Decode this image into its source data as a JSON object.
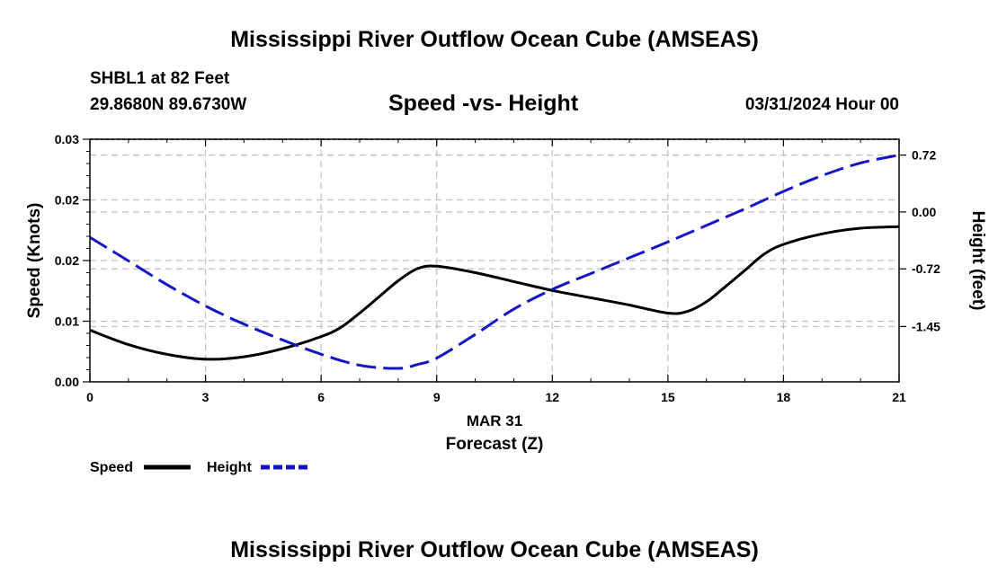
{
  "header": {
    "title": "Mississippi River Outflow Ocean Cube (AMSEAS)",
    "station": "SHBL1 at 82 Feet",
    "coords": "29.8680N  89.6730W",
    "chart_title": "Speed -vs- Height",
    "datetime": "03/31/2024 Hour 00"
  },
  "footer": {
    "title": "Mississippi River Outflow Ocean Cube (AMSEAS)"
  },
  "chart_data": {
    "type": "line",
    "title": "Speed -vs- Height",
    "xlabel": "Forecast (Z)",
    "xlabel_date": "MAR 31",
    "ylabel": "Speed (Knots)",
    "y2label": "Height (feet)",
    "xlim": [
      0,
      21
    ],
    "ylim": [
      0,
      0.03
    ],
    "y2lim": [
      -2.15,
      0.92
    ],
    "x_ticks": [
      0,
      3,
      6,
      9,
      12,
      15,
      18,
      21
    ],
    "x_tick_labels": [
      "0",
      "3",
      "6",
      "9",
      "12",
      "15",
      "18",
      "21"
    ],
    "y_ticks": [
      0,
      0.0075,
      0.015,
      0.0225,
      0.03
    ],
    "y_tick_labels": [
      "0.00",
      "0.01",
      "0.02",
      "0.02",
      "0.03"
    ],
    "y2_ticks": [
      -1.45,
      -0.72,
      0.0,
      0.72
    ],
    "y2_tick_labels": [
      "-1.45",
      "-0.72",
      "0.00",
      "0.72"
    ],
    "grid": true,
    "legend_position": "bottom-left",
    "colors": {
      "speed": "#000000",
      "height": "#1515c8",
      "grid": "#bfbfbf"
    },
    "series": [
      {
        "name": "Speed",
        "axis": "left",
        "style": "solid",
        "x": [
          0,
          1,
          2,
          3,
          4,
          5,
          6,
          6.5,
          7,
          7.5,
          8,
          8.5,
          9,
          10,
          11,
          12,
          13,
          14,
          15,
          15.5,
          16,
          16.5,
          17,
          17.5,
          18,
          19,
          20,
          21
        ],
        "y": [
          0.0064,
          0.0046,
          0.0034,
          0.0028,
          0.0031,
          0.0041,
          0.0056,
          0.0067,
          0.0085,
          0.0105,
          0.0125,
          0.014,
          0.0143,
          0.0135,
          0.0124,
          0.0113,
          0.0104,
          0.0095,
          0.0085,
          0.0087,
          0.0099,
          0.0118,
          0.0138,
          0.0158,
          0.017,
          0.0183,
          0.019,
          0.0192
        ]
      },
      {
        "name": "Height",
        "axis": "right",
        "style": "dashed",
        "x": [
          0,
          1,
          2,
          3,
          4,
          5,
          6,
          7,
          8,
          8.5,
          9,
          10,
          11,
          12,
          13,
          14,
          15,
          16,
          17,
          18,
          19,
          20,
          21
        ],
        "y": [
          -0.32,
          -0.62,
          -0.92,
          -1.19,
          -1.42,
          -1.62,
          -1.8,
          -1.94,
          -1.98,
          -1.93,
          -1.85,
          -1.55,
          -1.23,
          -0.98,
          -0.78,
          -0.58,
          -0.38,
          -0.17,
          0.04,
          0.26,
          0.46,
          0.62,
          0.72
        ]
      }
    ]
  }
}
